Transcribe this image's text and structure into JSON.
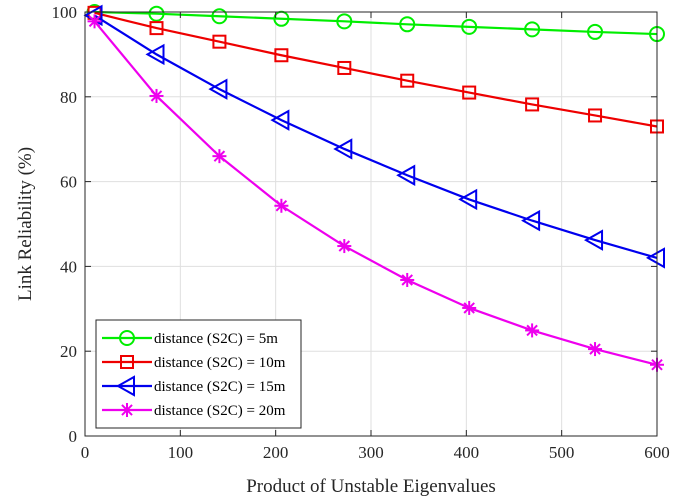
{
  "chart_data": {
    "type": "line",
    "title": "",
    "xlabel": "Product of Unstable Eigenvalues",
    "ylabel": "Link Reliability (%)",
    "xlim": [
      0,
      600
    ],
    "ylim": [
      0,
      100
    ],
    "xticks": [
      "0",
      "100",
      "200",
      "300",
      "400",
      "500",
      "600"
    ],
    "yticks": [
      "0",
      "20",
      "40",
      "60",
      "80",
      "100"
    ],
    "grid": true,
    "legend_position": "bottom-left",
    "x": [
      10,
      75,
      141,
      206,
      272,
      338,
      403,
      469,
      535,
      600
    ],
    "series": [
      {
        "name": "distance (S2C) = 5m",
        "color": "#00ee00",
        "marker": "circle",
        "values": [
          100,
          99.6,
          99.0,
          98.4,
          97.8,
          97.1,
          96.5,
          95.9,
          95.3,
          94.8
        ]
      },
      {
        "name": "distance (S2C) = 10m",
        "color": "#ee0000",
        "marker": "square",
        "values": [
          99.8,
          96.2,
          93.0,
          89.8,
          86.8,
          83.8,
          81.0,
          78.2,
          75.6,
          73.0
        ]
      },
      {
        "name": "distance (S2C) = 15m",
        "color": "#0000ee",
        "marker": "triangle-left",
        "values": [
          99.2,
          90.0,
          81.8,
          74.5,
          67.7,
          61.5,
          55.8,
          50.8,
          46.2,
          42.0
        ]
      },
      {
        "name": "distance (S2C) = 20m",
        "color": "#ee00ee",
        "marker": "asterisk",
        "values": [
          97.8,
          80.2,
          66.0,
          54.3,
          44.8,
          36.8,
          30.2,
          24.9,
          20.5,
          16.8
        ]
      }
    ]
  }
}
